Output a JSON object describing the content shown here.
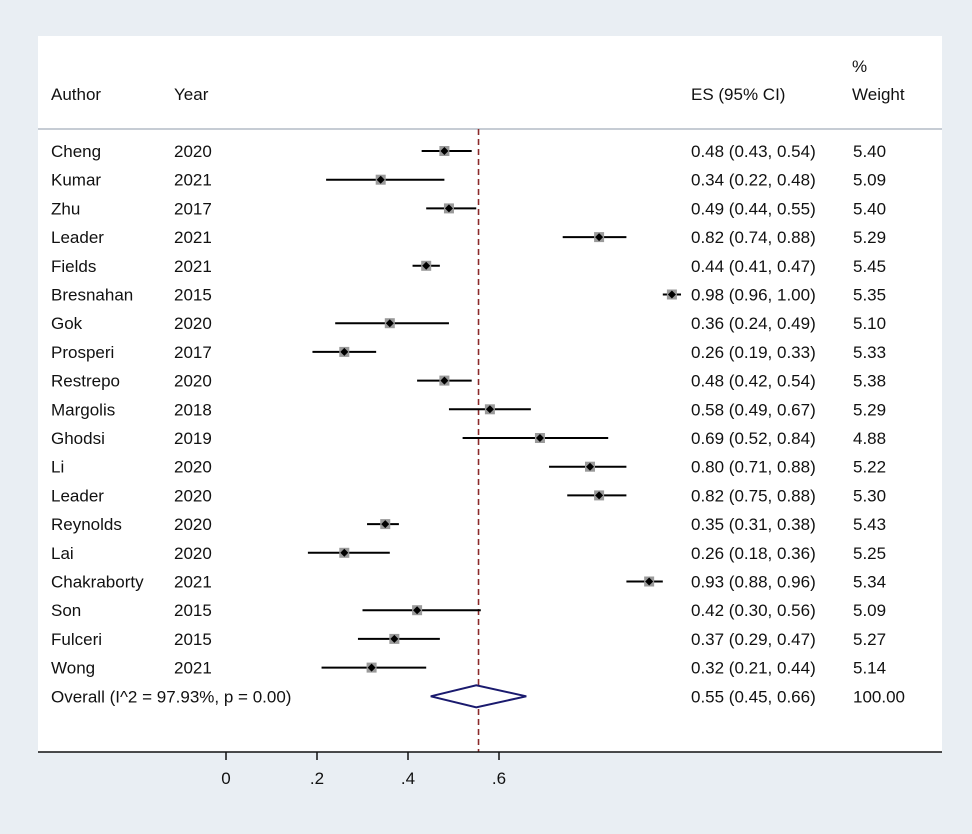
{
  "chart_data": {
    "type": "forest",
    "headers": {
      "author": "Author",
      "year": "Year",
      "es": "ES (95% CI)",
      "weight_line1": "%",
      "weight_line2": "Weight"
    },
    "studies": [
      {
        "author": "Cheng",
        "year": "2020",
        "es": 0.48,
        "lo": 0.43,
        "hi": 0.54,
        "es_text": "0.48 (0.43, 0.54)",
        "weight": "5.40"
      },
      {
        "author": "Kumar",
        "year": "2021",
        "es": 0.34,
        "lo": 0.22,
        "hi": 0.48,
        "es_text": "0.34 (0.22, 0.48)",
        "weight": "5.09"
      },
      {
        "author": "Zhu",
        "year": "2017",
        "es": 0.49,
        "lo": 0.44,
        "hi": 0.55,
        "es_text": "0.49 (0.44, 0.55)",
        "weight": "5.40"
      },
      {
        "author": "Leader",
        "year": "2021",
        "es": 0.82,
        "lo": 0.74,
        "hi": 0.88,
        "es_text": "0.82 (0.74, 0.88)",
        "weight": "5.29"
      },
      {
        "author": "Fields",
        "year": "2021",
        "es": 0.44,
        "lo": 0.41,
        "hi": 0.47,
        "es_text": "0.44 (0.41, 0.47)",
        "weight": "5.45"
      },
      {
        "author": "Bresnahan",
        "year": "2015",
        "es": 0.98,
        "lo": 0.96,
        "hi": 1.0,
        "es_text": "0.98 (0.96, 1.00)",
        "weight": "5.35"
      },
      {
        "author": "Gok",
        "year": "2020",
        "es": 0.36,
        "lo": 0.24,
        "hi": 0.49,
        "es_text": "0.36 (0.24, 0.49)",
        "weight": "5.10"
      },
      {
        "author": "Prosperi",
        "year": "2017",
        "es": 0.26,
        "lo": 0.19,
        "hi": 0.33,
        "es_text": "0.26 (0.19, 0.33)",
        "weight": "5.33"
      },
      {
        "author": "Restrepo",
        "year": "2020",
        "es": 0.48,
        "lo": 0.42,
        "hi": 0.54,
        "es_text": "0.48 (0.42, 0.54)",
        "weight": "5.38"
      },
      {
        "author": "Margolis",
        "year": "2018",
        "es": 0.58,
        "lo": 0.49,
        "hi": 0.67,
        "es_text": "0.58 (0.49, 0.67)",
        "weight": "5.29"
      },
      {
        "author": "Ghodsi",
        "year": "2019",
        "es": 0.69,
        "lo": 0.52,
        "hi": 0.84,
        "es_text": "0.69 (0.52, 0.84)",
        "weight": "4.88"
      },
      {
        "author": "Li",
        "year": "2020",
        "es": 0.8,
        "lo": 0.71,
        "hi": 0.88,
        "es_text": "0.80 (0.71, 0.88)",
        "weight": "5.22"
      },
      {
        "author": "Leader",
        "year": "2020",
        "es": 0.82,
        "lo": 0.75,
        "hi": 0.88,
        "es_text": "0.82 (0.75, 0.88)",
        "weight": "5.30"
      },
      {
        "author": "Reynolds",
        "year": "2020",
        "es": 0.35,
        "lo": 0.31,
        "hi": 0.38,
        "es_text": "0.35 (0.31, 0.38)",
        "weight": "5.43"
      },
      {
        "author": "Lai",
        "year": "2020",
        "es": 0.26,
        "lo": 0.18,
        "hi": 0.36,
        "es_text": "0.26 (0.18, 0.36)",
        "weight": "5.25"
      },
      {
        "author": "Chakraborty",
        "year": "2021",
        "es": 0.93,
        "lo": 0.88,
        "hi": 0.96,
        "es_text": "0.93 (0.88, 0.96)",
        "weight": "5.34"
      },
      {
        "author": "Son",
        "year": "2015",
        "es": 0.42,
        "lo": 0.3,
        "hi": 0.56,
        "es_text": "0.42 (0.30, 0.56)",
        "weight": "5.09"
      },
      {
        "author": "Fulceri",
        "year": "2015",
        "es": 0.37,
        "lo": 0.29,
        "hi": 0.47,
        "es_text": "0.37 (0.29, 0.47)",
        "weight": "5.27"
      },
      {
        "author": "Wong",
        "year": "2021",
        "es": 0.32,
        "lo": 0.21,
        "hi": 0.44,
        "es_text": "0.32 (0.21, 0.44)",
        "weight": "5.14"
      }
    ],
    "overall": {
      "label": "Overall  (I^2 = 97.93%, p = 0.00)",
      "es": 0.55,
      "lo": 0.45,
      "hi": 0.66,
      "es_text": "0.55 (0.45, 0.66)",
      "weight": "100.00"
    },
    "x_ticks": [
      {
        "value": 0,
        "label": "0"
      },
      {
        "value": 0.2,
        "label": ".2"
      },
      {
        "value": 0.4,
        "label": ".4"
      },
      {
        "value": 0.6,
        "label": ".6"
      }
    ],
    "reference_line": 0.555,
    "xlim": [
      0,
      1
    ],
    "colors": {
      "page_bg": "#e9eef3",
      "panel_bg": "#ffffff",
      "ci_line": "#000000",
      "weight_box": "#9a9a9a",
      "point": "#000000",
      "ref_line": "#8b2a2a",
      "diamond": "#1a1a6e",
      "separator": "#b4bcc6",
      "axis": "#111111"
    }
  }
}
